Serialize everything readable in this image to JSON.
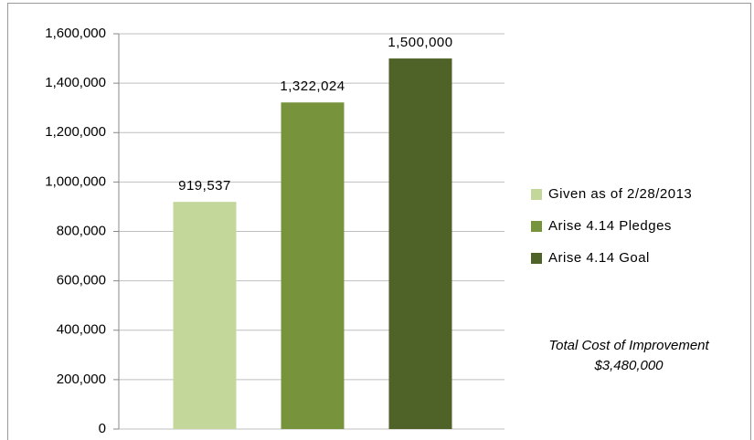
{
  "chart_data": {
    "type": "bar",
    "series": [
      {
        "name": "Given as of  2/28/2013",
        "color": "#c4d79b",
        "values": [
          919537
        ],
        "value_labels": [
          "919,537"
        ]
      },
      {
        "name": "Arise 4.14 Pledges",
        "color": "#77933c",
        "values": [
          1322024
        ],
        "value_labels": [
          "1,322,024"
        ]
      },
      {
        "name": "Arise 4.14 Goal",
        "color": "#4f6228",
        "values": [
          1500000
        ],
        "value_labels": [
          "1,500,000"
        ]
      }
    ],
    "ylim": [
      0,
      1600000
    ],
    "yticks": [
      0,
      {
        "value": 200000,
        "label": "200,000"
      },
      {
        "value": 400000,
        "label": "400,000"
      },
      {
        "value": 600000,
        "label": "600,000"
      },
      {
        "value": 800000,
        "label": "800,000"
      },
      {
        "value": 1000000,
        "label": "1,000,000"
      },
      {
        "value": 1200000,
        "label": "1,200,000"
      },
      {
        "value": 1400000,
        "label": "1,400,000"
      },
      {
        "value": 1600000,
        "label": "1,600,000"
      }
    ],
    "grid": true,
    "legend": "right",
    "annotation": [
      "Total  Cost of Improvement",
      "$3,480,000"
    ]
  }
}
